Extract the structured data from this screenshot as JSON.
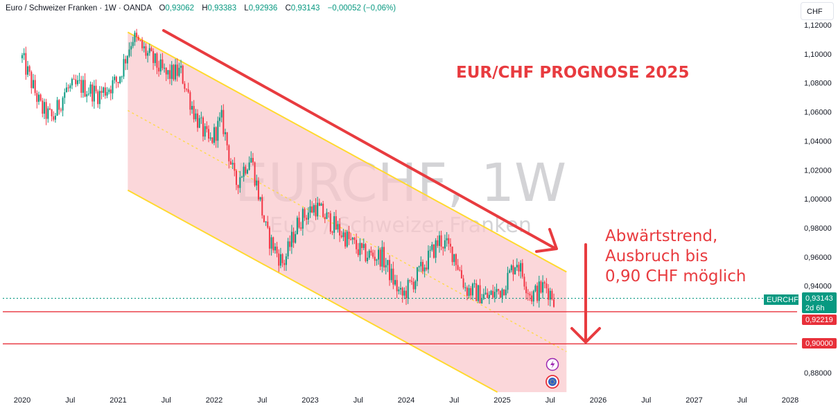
{
  "legend": {
    "symbol_name": "Euro / Schweizer Franken · 1W · OANDA",
    "open_label": "O",
    "open": "0,93062",
    "high_label": "H",
    "high": "0,93383",
    "low_label": "L",
    "low": "0,92936",
    "close_label": "C",
    "close": "0,93143",
    "change": "−0,00052 (−0,06%)"
  },
  "currency_button": "CHF",
  "watermark": {
    "ticker": "EURCHF, 1W",
    "name": "Euro / Schweizer Franken"
  },
  "annotations": {
    "title": "EUR/CHF PROGNOSE 2025",
    "lines": [
      "Abwärtstrend,",
      "Ausbruch bis",
      "0,90 CHF möglich"
    ]
  },
  "price_tags": {
    "symbol": "EURCHF",
    "last_price": "0,93143",
    "countdown": "2d 6h",
    "level_1": "0,92219",
    "level_2": "0,90000"
  },
  "colors": {
    "up": "#089981",
    "down": "#f23645",
    "channel_fill": "#f9c6cb",
    "channel_line": "#ffd92e",
    "arrow": "#e83b3f",
    "level_line": "#e8303a",
    "last_price": "#089981"
  },
  "icons": [
    "lightning-icon",
    "globe-icon"
  ],
  "chart_data": {
    "type": "candlestick",
    "title": "Euro / Schweizer Franken · 1W · OANDA",
    "y_axis": {
      "min": 0.87,
      "max": 1.125,
      "ticks": [
        "1,12000",
        "1,10000",
        "1,08000",
        "1,06000",
        "1,04000",
        "1,02000",
        "1,00000",
        "0,98000",
        "0,96000",
        "0,94000",
        "0,88000"
      ]
    },
    "x_axis": {
      "ticks": [
        "2020",
        "Jul",
        "2021",
        "Jul",
        "2022",
        "Jul",
        "2023",
        "Jul",
        "2024",
        "Jul",
        "2025",
        "Jul",
        "2026",
        "Jul",
        "2027",
        "Jul",
        "2028"
      ]
    },
    "price_path": [
      {
        "t": 2020.0,
        "v": 1.097
      },
      {
        "t": 2020.2,
        "v": 1.062
      },
      {
        "t": 2020.32,
        "v": 1.055
      },
      {
        "t": 2020.45,
        "v": 1.075
      },
      {
        "t": 2020.6,
        "v": 1.078
      },
      {
        "t": 2020.8,
        "v": 1.072
      },
      {
        "t": 2021.0,
        "v": 1.082
      },
      {
        "t": 2021.15,
        "v": 1.112
      },
      {
        "t": 2021.3,
        "v": 1.1
      },
      {
        "t": 2021.5,
        "v": 1.085
      },
      {
        "t": 2021.65,
        "v": 1.088
      },
      {
        "t": 2021.8,
        "v": 1.058
      },
      {
        "t": 2021.95,
        "v": 1.038
      },
      {
        "t": 2022.08,
        "v": 1.055
      },
      {
        "t": 2022.22,
        "v": 1.01
      },
      {
        "t": 2022.38,
        "v": 1.03
      },
      {
        "t": 2022.55,
        "v": 0.975
      },
      {
        "t": 2022.72,
        "v": 0.955
      },
      {
        "t": 2022.88,
        "v": 0.985
      },
      {
        "t": 2023.05,
        "v": 0.995
      },
      {
        "t": 2023.3,
        "v": 0.978
      },
      {
        "t": 2023.55,
        "v": 0.962
      },
      {
        "t": 2023.75,
        "v": 0.96
      },
      {
        "t": 2023.95,
        "v": 0.932
      },
      {
        "t": 2024.15,
        "v": 0.95
      },
      {
        "t": 2024.35,
        "v": 0.972
      },
      {
        "t": 2024.5,
        "v": 0.962
      },
      {
        "t": 2024.62,
        "v": 0.938
      },
      {
        "t": 2024.85,
        "v": 0.932
      },
      {
        "t": 2025.0,
        "v": 0.938
      },
      {
        "t": 2025.15,
        "v": 0.958
      },
      {
        "t": 2025.3,
        "v": 0.933
      },
      {
        "t": 2025.45,
        "v": 0.94
      },
      {
        "t": 2025.55,
        "v": 0.931
      }
    ],
    "channel": {
      "upper": [
        {
          "t": 2021.1,
          "v": 1.115
        },
        {
          "t": 2025.55,
          "v": 0.954
        }
      ],
      "lower": [
        {
          "t": 2021.1,
          "v": 1.006
        },
        {
          "t": 2025.55,
          "v": 0.845
        }
      ],
      "midline": [
        {
          "t": 2021.1,
          "v": 1.061
        },
        {
          "t": 2025.55,
          "v": 0.899
        }
      ]
    },
    "horizontal_levels": [
      0.92219,
      0.9
    ],
    "last_price": 0.93143
  }
}
